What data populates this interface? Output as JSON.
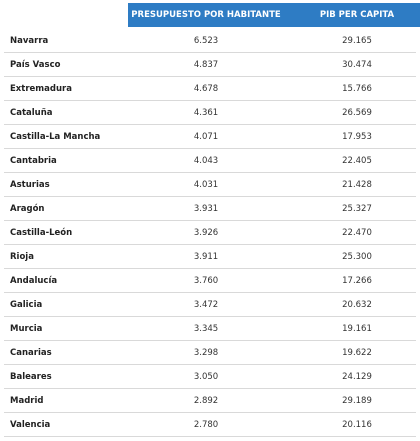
{
  "table": {
    "headers": [
      "PRESUPUESTO POR HABITANTE",
      "PIB PER CAPITA"
    ],
    "rows": [
      {
        "region": "Navarra",
        "presupuesto": "6.523",
        "pib": "29.165"
      },
      {
        "region": "País Vasco",
        "presupuesto": "4.837",
        "pib": "30.474"
      },
      {
        "region": "Extremadura",
        "presupuesto": "4.678",
        "pib": "15.766"
      },
      {
        "region": "Cataluña",
        "presupuesto": "4.361",
        "pib": "26.569"
      },
      {
        "region": "Castilla-La Mancha",
        "presupuesto": "4.071",
        "pib": "17.953"
      },
      {
        "region": "Cantabria",
        "presupuesto": "4.043",
        "pib": "22.405"
      },
      {
        "region": "Asturias",
        "presupuesto": "4.031",
        "pib": "21.428"
      },
      {
        "region": "Aragón",
        "presupuesto": "3.931",
        "pib": "25.327"
      },
      {
        "region": "Castilla-León",
        "presupuesto": "3.926",
        "pib": "22.470"
      },
      {
        "region": "Rioja",
        "presupuesto": "3.911",
        "pib": "25.300"
      },
      {
        "region": "Andalucía",
        "presupuesto": "3.760",
        "pib": "17.266"
      },
      {
        "region": "Galicia",
        "presupuesto": "3.472",
        "pib": "20.632"
      },
      {
        "region": "Murcia",
        "presupuesto": "3.345",
        "pib": "19.161"
      },
      {
        "region": "Canarias",
        "presupuesto": "3.298",
        "pib": "19.622"
      },
      {
        "region": "Baleares",
        "presupuesto": "3.050",
        "pib": "24.129"
      },
      {
        "region": "Madrid",
        "presupuesto": "2.892",
        "pib": "29.189"
      },
      {
        "region": "Valencia",
        "presupuesto": "2.780",
        "pib": "20.116"
      }
    ]
  },
  "colors": {
    "header_bg": "#2e7cc4",
    "header_text": "#ffffff",
    "row_divider": "#d9d9d9"
  }
}
